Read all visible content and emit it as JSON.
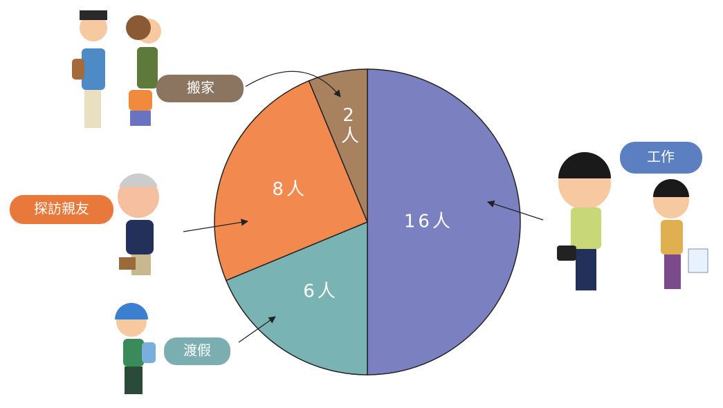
{
  "chart_data": {
    "type": "pie",
    "categories": [
      "工作",
      "渡假",
      "探訪親友",
      "搬家"
    ],
    "values": [
      16,
      6,
      8,
      2
    ],
    "value_labels": [
      "16人",
      "6人",
      "8人",
      "2人"
    ],
    "colors": [
      "#7b80c0",
      "#7ab3b3",
      "#f28a50",
      "#a8825f"
    ]
  }
}
